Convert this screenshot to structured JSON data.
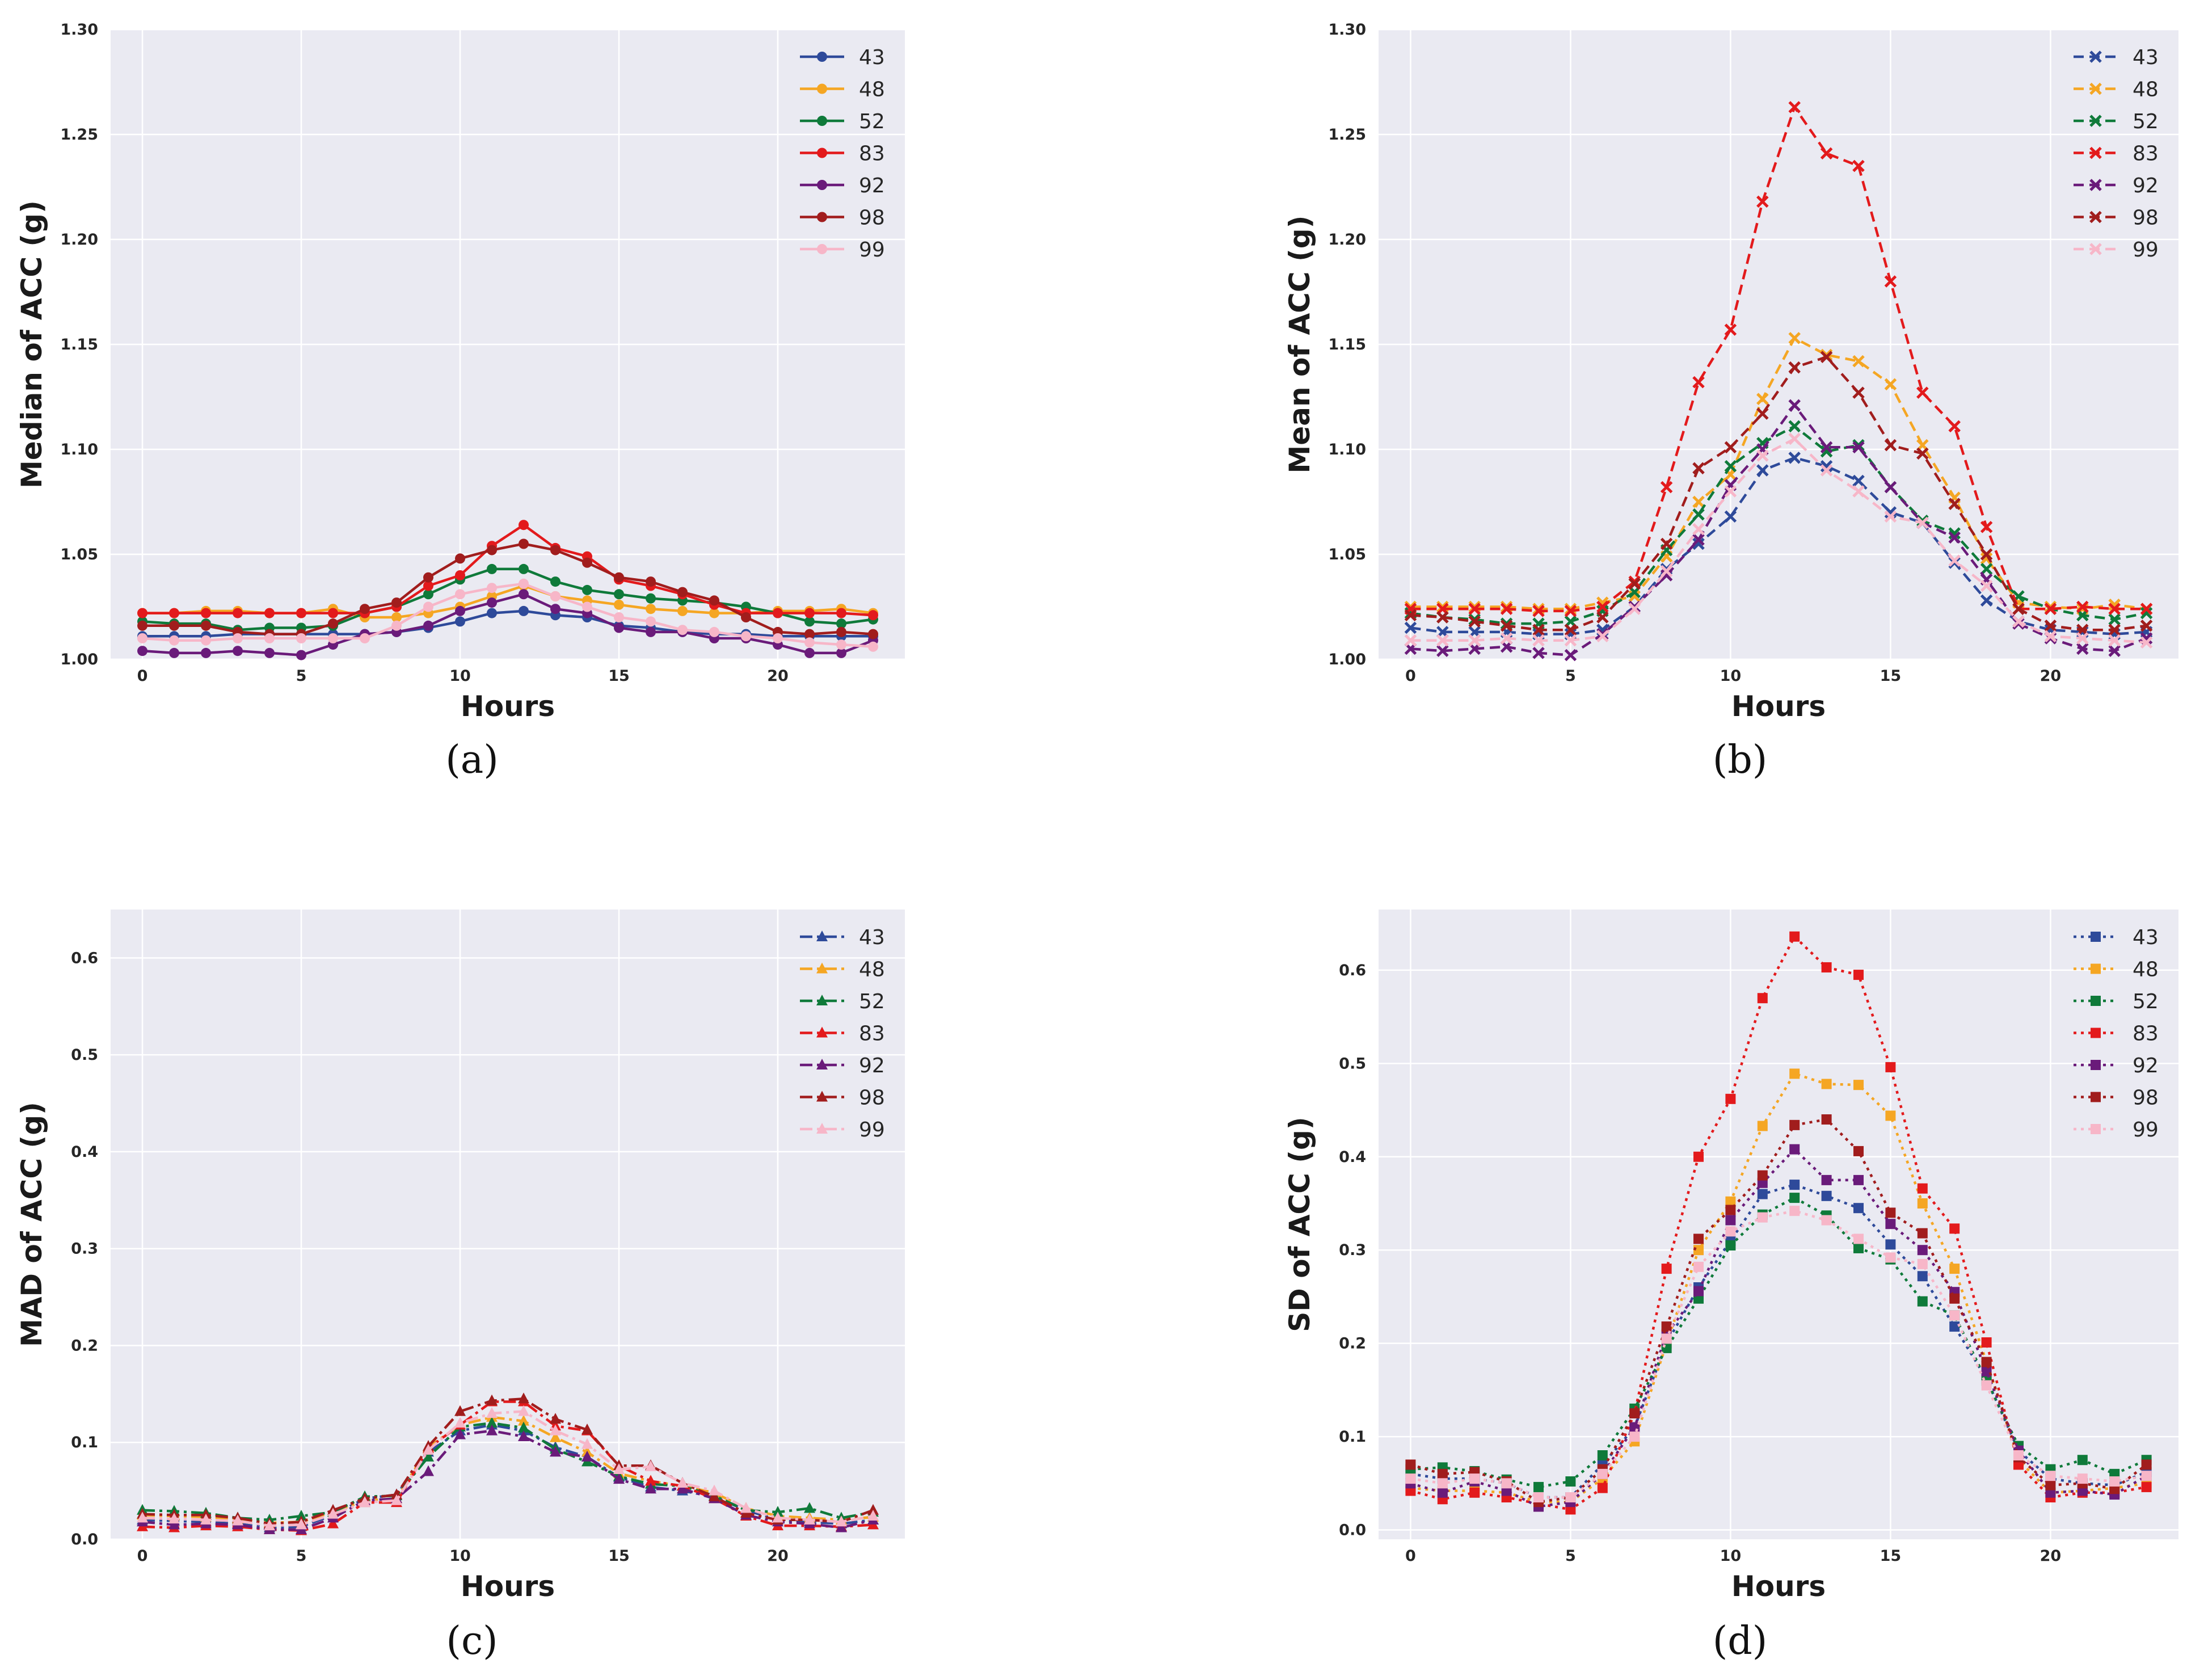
{
  "chart_data": [
    {
      "id": "a",
      "type": "line",
      "panel_label": "(a)",
      "xlabel": "Hours",
      "ylabel": "Median of ACC (g)",
      "ylim": [
        1.0,
        1.3
      ],
      "yticks": [
        "1.00",
        "1.05",
        "1.10",
        "1.15",
        "1.20",
        "1.25",
        "1.30"
      ],
      "xlim": [
        -1,
        24
      ],
      "xticks": [
        0,
        5,
        10,
        15,
        20
      ],
      "marker": "circle",
      "dash": "solid",
      "grid": true,
      "legend_position": "top-right",
      "x": [
        0,
        1,
        2,
        3,
        4,
        5,
        6,
        7,
        8,
        9,
        10,
        11,
        12,
        13,
        14,
        15,
        16,
        17,
        18,
        19,
        20,
        21,
        22,
        23
      ],
      "series": [
        {
          "name": "43",
          "color": "#2e4a9a",
          "values": [
            1.011,
            1.011,
            1.011,
            1.012,
            1.012,
            1.012,
            1.012,
            1.012,
            1.013,
            1.015,
            1.018,
            1.022,
            1.023,
            1.021,
            1.02,
            1.016,
            1.015,
            1.013,
            1.012,
            1.012,
            1.011,
            1.011,
            1.011,
            1.011
          ]
        },
        {
          "name": "48",
          "color": "#f5a623",
          "values": [
            1.022,
            1.022,
            1.023,
            1.023,
            1.022,
            1.022,
            1.024,
            1.02,
            1.02,
            1.022,
            1.025,
            1.03,
            1.035,
            1.03,
            1.028,
            1.026,
            1.024,
            1.023,
            1.022,
            1.022,
            1.023,
            1.023,
            1.024,
            1.022
          ]
        },
        {
          "name": "52",
          "color": "#0f7a3a",
          "values": [
            1.018,
            1.017,
            1.017,
            1.014,
            1.015,
            1.015,
            1.016,
            1.022,
            1.025,
            1.031,
            1.038,
            1.043,
            1.043,
            1.037,
            1.033,
            1.031,
            1.029,
            1.028,
            1.027,
            1.025,
            1.022,
            1.018,
            1.017,
            1.019
          ]
        },
        {
          "name": "83",
          "color": "#e31a1c",
          "values": [
            1.022,
            1.022,
            1.022,
            1.022,
            1.022,
            1.022,
            1.022,
            1.022,
            1.025,
            1.035,
            1.04,
            1.054,
            1.064,
            1.053,
            1.049,
            1.038,
            1.035,
            1.031,
            1.026,
            1.022,
            1.022,
            1.022,
            1.022,
            1.021
          ]
        },
        {
          "name": "92",
          "color": "#6a1b7a",
          "values": [
            1.004,
            1.003,
            1.003,
            1.004,
            1.003,
            1.002,
            1.007,
            1.012,
            1.013,
            1.016,
            1.023,
            1.027,
            1.031,
            1.024,
            1.022,
            1.015,
            1.013,
            1.013,
            1.01,
            1.01,
            1.007,
            1.003,
            1.003,
            1.009
          ]
        },
        {
          "name": "98",
          "color": "#a11d1d",
          "values": [
            1.016,
            1.016,
            1.016,
            1.013,
            1.012,
            1.012,
            1.017,
            1.024,
            1.027,
            1.039,
            1.048,
            1.052,
            1.055,
            1.052,
            1.046,
            1.039,
            1.037,
            1.032,
            1.028,
            1.02,
            1.013,
            1.012,
            1.013,
            1.012
          ]
        },
        {
          "name": "99",
          "color": "#f7b6c8",
          "values": [
            1.01,
            1.009,
            1.009,
            1.01,
            1.01,
            1.01,
            1.01,
            1.01,
            1.016,
            1.025,
            1.031,
            1.034,
            1.036,
            1.03,
            1.025,
            1.02,
            1.018,
            1.014,
            1.013,
            1.011,
            1.01,
            1.008,
            1.007,
            1.006
          ]
        }
      ]
    },
    {
      "id": "b",
      "type": "line",
      "panel_label": "(b)",
      "xlabel": "Hours",
      "ylabel": "Mean of ACC (g)",
      "ylim": [
        1.0,
        1.3
      ],
      "yticks": [
        "1.00",
        "1.05",
        "1.10",
        "1.15",
        "1.20",
        "1.25",
        "1.30"
      ],
      "xlim": [
        -1,
        24
      ],
      "xticks": [
        0,
        5,
        10,
        15,
        20
      ],
      "marker": "x",
      "dash": "dashed",
      "grid": true,
      "legend_position": "top-right",
      "x": [
        0,
        1,
        2,
        3,
        4,
        5,
        6,
        7,
        8,
        9,
        10,
        11,
        12,
        13,
        14,
        15,
        16,
        17,
        18,
        19,
        20,
        21,
        22,
        23
      ],
      "series": [
        {
          "name": "43",
          "color": "#2e4a9a",
          "values": [
            1.015,
            1.013,
            1.013,
            1.013,
            1.012,
            1.012,
            1.014,
            1.025,
            1.043,
            1.055,
            1.068,
            1.09,
            1.096,
            1.092,
            1.085,
            1.07,
            1.065,
            1.046,
            1.028,
            1.018,
            1.014,
            1.013,
            1.012,
            1.013
          ]
        },
        {
          "name": "48",
          "color": "#f5a623",
          "values": [
            1.025,
            1.025,
            1.025,
            1.025,
            1.024,
            1.024,
            1.027,
            1.03,
            1.049,
            1.075,
            1.088,
            1.124,
            1.153,
            1.145,
            1.142,
            1.131,
            1.102,
            1.077,
            1.048,
            1.027,
            1.025,
            1.024,
            1.026,
            1.024
          ]
        },
        {
          "name": "52",
          "color": "#0f7a3a",
          "values": [
            1.022,
            1.02,
            1.019,
            1.017,
            1.017,
            1.018,
            1.023,
            1.032,
            1.052,
            1.069,
            1.092,
            1.103,
            1.111,
            1.099,
            1.102,
            1.082,
            1.066,
            1.06,
            1.043,
            1.03,
            1.024,
            1.021,
            1.019,
            1.022
          ]
        },
        {
          "name": "83",
          "color": "#e31a1c",
          "values": [
            1.024,
            1.024,
            1.024,
            1.024,
            1.023,
            1.023,
            1.025,
            1.037,
            1.082,
            1.132,
            1.157,
            1.218,
            1.263,
            1.241,
            1.235,
            1.18,
            1.127,
            1.111,
            1.063,
            1.024,
            1.024,
            1.025,
            1.024,
            1.024
          ]
        },
        {
          "name": "92",
          "color": "#6a1b7a",
          "values": [
            1.005,
            1.004,
            1.005,
            1.006,
            1.003,
            1.002,
            1.012,
            1.025,
            1.04,
            1.057,
            1.083,
            1.1,
            1.121,
            1.101,
            1.101,
            1.082,
            1.065,
            1.058,
            1.038,
            1.017,
            1.01,
            1.005,
            1.004,
            1.01
          ]
        },
        {
          "name": "98",
          "color": "#a11d1d",
          "values": [
            1.021,
            1.02,
            1.018,
            1.016,
            1.014,
            1.014,
            1.02,
            1.036,
            1.055,
            1.091,
            1.101,
            1.117,
            1.139,
            1.144,
            1.127,
            1.102,
            1.098,
            1.074,
            1.05,
            1.024,
            1.016,
            1.014,
            1.014,
            1.016
          ]
        },
        {
          "name": "99",
          "color": "#f7b6c8",
          "values": [
            1.009,
            1.009,
            1.009,
            1.01,
            1.009,
            1.009,
            1.011,
            1.024,
            1.042,
            1.062,
            1.08,
            1.097,
            1.105,
            1.09,
            1.08,
            1.068,
            1.065,
            1.047,
            1.035,
            1.018,
            1.011,
            1.01,
            1.009,
            1.008
          ]
        }
      ]
    },
    {
      "id": "c",
      "type": "line",
      "panel_label": "(c)",
      "xlabel": "Hours",
      "ylabel": "MAD of ACC (g)",
      "ylim": [
        0.0,
        0.65
      ],
      "yticks": [
        "0.0",
        "0.1",
        "0.2",
        "0.3",
        "0.4",
        "0.5",
        "0.6"
      ],
      "xlim": [
        -1,
        24
      ],
      "xticks": [
        0,
        5,
        10,
        15,
        20
      ],
      "marker": "triangle",
      "dash": "dashdot",
      "grid": true,
      "legend_position": "top-right",
      "x": [
        0,
        1,
        2,
        3,
        4,
        5,
        6,
        7,
        8,
        9,
        10,
        11,
        12,
        13,
        14,
        15,
        16,
        17,
        18,
        19,
        20,
        21,
        22,
        23
      ],
      "series": [
        {
          "name": "43",
          "color": "#2e4a9a",
          "values": [
            0.02,
            0.019,
            0.018,
            0.016,
            0.012,
            0.013,
            0.025,
            0.042,
            0.046,
            0.09,
            0.112,
            0.118,
            0.112,
            0.095,
            0.085,
            0.064,
            0.054,
            0.05,
            0.044,
            0.03,
            0.02,
            0.018,
            0.016,
            0.02
          ]
        },
        {
          "name": "48",
          "color": "#f5a623",
          "values": [
            0.025,
            0.024,
            0.023,
            0.021,
            0.017,
            0.018,
            0.028,
            0.04,
            0.042,
            0.095,
            0.118,
            0.126,
            0.122,
            0.105,
            0.09,
            0.068,
            0.06,
            0.055,
            0.048,
            0.032,
            0.024,
            0.022,
            0.02,
            0.023
          ]
        },
        {
          "name": "52",
          "color": "#0f7a3a",
          "values": [
            0.03,
            0.029,
            0.027,
            0.022,
            0.02,
            0.024,
            0.028,
            0.044,
            0.045,
            0.085,
            0.116,
            0.12,
            0.115,
            0.093,
            0.08,
            0.065,
            0.057,
            0.055,
            0.045,
            0.03,
            0.028,
            0.032,
            0.022,
            0.028
          ]
        },
        {
          "name": "83",
          "color": "#e31a1c",
          "values": [
            0.013,
            0.012,
            0.014,
            0.013,
            0.01,
            0.009,
            0.016,
            0.038,
            0.038,
            0.094,
            0.118,
            0.142,
            0.142,
            0.117,
            0.112,
            0.076,
            0.06,
            0.055,
            0.042,
            0.024,
            0.014,
            0.014,
            0.013,
            0.015
          ]
        },
        {
          "name": "92",
          "color": "#6a1b7a",
          "values": [
            0.018,
            0.015,
            0.016,
            0.015,
            0.01,
            0.01,
            0.022,
            0.04,
            0.042,
            0.07,
            0.108,
            0.112,
            0.106,
            0.09,
            0.085,
            0.062,
            0.052,
            0.052,
            0.042,
            0.025,
            0.018,
            0.016,
            0.012,
            0.02
          ]
        },
        {
          "name": "98",
          "color": "#a11d1d",
          "values": [
            0.026,
            0.025,
            0.025,
            0.022,
            0.016,
            0.018,
            0.03,
            0.042,
            0.046,
            0.096,
            0.132,
            0.143,
            0.145,
            0.124,
            0.113,
            0.076,
            0.076,
            0.058,
            0.044,
            0.027,
            0.02,
            0.02,
            0.018,
            0.03
          ]
        },
        {
          "name": "99",
          "color": "#f7b6c8",
          "values": [
            0.022,
            0.021,
            0.02,
            0.019,
            0.014,
            0.015,
            0.026,
            0.038,
            0.04,
            0.092,
            0.12,
            0.13,
            0.132,
            0.112,
            0.098,
            0.072,
            0.075,
            0.058,
            0.05,
            0.032,
            0.022,
            0.02,
            0.018,
            0.024
          ]
        }
      ]
    },
    {
      "id": "d",
      "type": "line",
      "panel_label": "(d)",
      "xlabel": "Hours",
      "ylabel": "SD of ACC (g)",
      "ylim": [
        -0.01,
        0.665
      ],
      "yticks": [
        "0.0",
        "0.1",
        "0.2",
        "0.3",
        "0.4",
        "0.5",
        "0.6"
      ],
      "xlim": [
        -1,
        24
      ],
      "xticks": [
        0,
        5,
        10,
        15,
        20
      ],
      "marker": "square",
      "dash": "dotted",
      "grid": true,
      "legend_position": "top-right",
      "x": [
        0,
        1,
        2,
        3,
        4,
        5,
        6,
        7,
        8,
        9,
        10,
        11,
        12,
        13,
        14,
        15,
        16,
        17,
        18,
        19,
        20,
        21,
        22,
        23
      ],
      "series": [
        {
          "name": "43",
          "color": "#2e4a9a",
          "values": [
            0.06,
            0.055,
            0.055,
            0.05,
            0.035,
            0.035,
            0.07,
            0.11,
            0.2,
            0.26,
            0.31,
            0.36,
            0.37,
            0.358,
            0.345,
            0.306,
            0.272,
            0.218,
            0.162,
            0.085,
            0.055,
            0.05,
            0.048,
            0.062
          ]
        },
        {
          "name": "48",
          "color": "#f5a623",
          "values": [
            0.045,
            0.042,
            0.042,
            0.04,
            0.03,
            0.03,
            0.055,
            0.095,
            0.2,
            0.3,
            0.352,
            0.433,
            0.489,
            0.478,
            0.477,
            0.444,
            0.35,
            0.28,
            0.18,
            0.075,
            0.04,
            0.042,
            0.045,
            0.05
          ]
        },
        {
          "name": "52",
          "color": "#0f7a3a",
          "values": [
            0.065,
            0.067,
            0.063,
            0.054,
            0.046,
            0.052,
            0.08,
            0.13,
            0.195,
            0.248,
            0.305,
            0.338,
            0.356,
            0.337,
            0.302,
            0.29,
            0.245,
            0.23,
            0.16,
            0.09,
            0.065,
            0.075,
            0.06,
            0.075
          ]
        },
        {
          "name": "83",
          "color": "#e31a1c",
          "values": [
            0.042,
            0.033,
            0.04,
            0.035,
            0.028,
            0.022,
            0.045,
            0.125,
            0.28,
            0.4,
            0.462,
            0.57,
            0.636,
            0.603,
            0.595,
            0.496,
            0.366,
            0.323,
            0.201,
            0.07,
            0.035,
            0.04,
            0.04,
            0.046
          ]
        },
        {
          "name": "92",
          "color": "#6a1b7a",
          "values": [
            0.05,
            0.04,
            0.052,
            0.042,
            0.025,
            0.03,
            0.06,
            0.11,
            0.21,
            0.256,
            0.332,
            0.372,
            0.408,
            0.375,
            0.375,
            0.328,
            0.3,
            0.255,
            0.17,
            0.085,
            0.04,
            0.042,
            0.038,
            0.058
          ]
        },
        {
          "name": "98",
          "color": "#a11d1d",
          "values": [
            0.07,
            0.06,
            0.062,
            0.052,
            0.03,
            0.035,
            0.065,
            0.125,
            0.218,
            0.312,
            0.343,
            0.38,
            0.434,
            0.44,
            0.406,
            0.34,
            0.318,
            0.248,
            0.18,
            0.078,
            0.048,
            0.05,
            0.044,
            0.07
          ]
        },
        {
          "name": "99",
          "color": "#f7b6c8",
          "values": [
            0.055,
            0.05,
            0.055,
            0.05,
            0.035,
            0.035,
            0.06,
            0.1,
            0.205,
            0.282,
            0.32,
            0.335,
            0.342,
            0.332,
            0.312,
            0.292,
            0.285,
            0.23,
            0.155,
            0.08,
            0.058,
            0.055,
            0.052,
            0.058
          ]
        }
      ]
    }
  ]
}
